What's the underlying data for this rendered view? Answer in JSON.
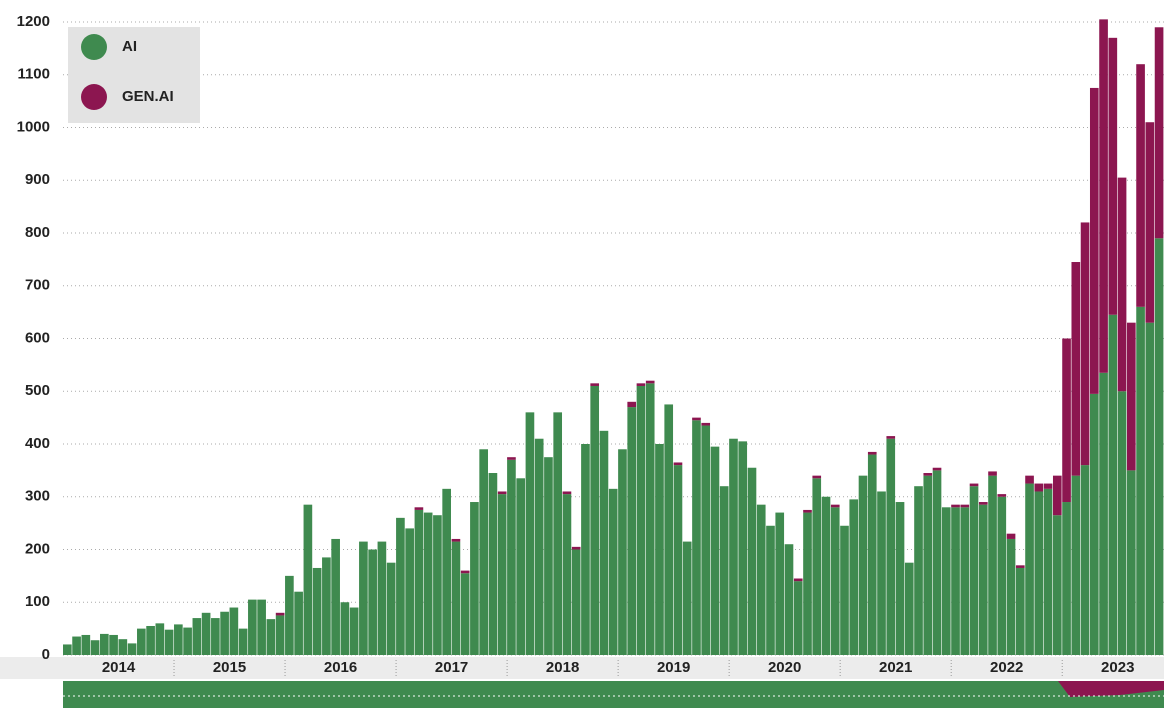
{
  "chart_data": {
    "type": "stacked-bar",
    "categories": [
      null,
      null,
      null,
      null,
      null,
      null,
      "2014",
      null,
      null,
      null,
      null,
      null,
      null,
      null,
      null,
      null,
      null,
      null,
      "2015",
      null,
      null,
      null,
      null,
      null,
      null,
      null,
      null,
      null,
      null,
      null,
      "2016",
      null,
      null,
      null,
      null,
      null,
      null,
      null,
      null,
      null,
      null,
      null,
      "2017",
      null,
      null,
      null,
      null,
      null,
      null,
      null,
      null,
      null,
      null,
      null,
      "2018",
      null,
      null,
      null,
      null,
      null,
      null,
      null,
      null,
      null,
      null,
      null,
      "2019",
      null,
      null,
      null,
      null,
      null,
      null,
      null,
      null,
      null,
      null,
      null,
      "2020",
      null,
      null,
      null,
      null,
      null,
      null,
      null,
      null,
      null,
      null,
      null,
      "2021",
      null,
      null,
      null,
      null,
      null,
      null,
      null,
      null,
      null,
      null,
      null,
      "2022",
      null,
      null,
      null,
      null,
      null,
      null,
      null,
      null,
      null,
      null,
      null,
      "2023",
      null,
      null,
      null,
      null
    ],
    "series": [
      {
        "name": "AI",
        "color": "#3f8a4f",
        "values": [
          20,
          35,
          38,
          28,
          40,
          38,
          30,
          22,
          50,
          55,
          60,
          48,
          58,
          52,
          70,
          80,
          70,
          82,
          90,
          50,
          105,
          105,
          68,
          75,
          150,
          120,
          285,
          165,
          185,
          220,
          100,
          90,
          215,
          200,
          215,
          175,
          260,
          240,
          275,
          270,
          265,
          315,
          215,
          155,
          290,
          390,
          345,
          305,
          370,
          335,
          460,
          410,
          375,
          460,
          305,
          200,
          400,
          510,
          425,
          315,
          390,
          470,
          510,
          515,
          400,
          475,
          360,
          215,
          445,
          435,
          395,
          320,
          410,
          405,
          355,
          285,
          245,
          270,
          210,
          140,
          270,
          335,
          300,
          280,
          245,
          295,
          340,
          380,
          310,
          410,
          290,
          175,
          320,
          340,
          350,
          280,
          280,
          280,
          320,
          285,
          340,
          300,
          220,
          165,
          325,
          310,
          315,
          265,
          290,
          340,
          360,
          495,
          535,
          645,
          500,
          350,
          660,
          630,
          790
        ]
      },
      {
        "name": "GEN.AI",
        "color": "#8c1650",
        "values": [
          0,
          0,
          0,
          0,
          0,
          0,
          0,
          0,
          0,
          0,
          0,
          0,
          0,
          0,
          0,
          0,
          0,
          0,
          0,
          0,
          0,
          0,
          0,
          5,
          0,
          0,
          0,
          0,
          0,
          0,
          0,
          0,
          0,
          0,
          0,
          0,
          0,
          0,
          5,
          0,
          0,
          0,
          5,
          5,
          0,
          0,
          0,
          5,
          5,
          0,
          0,
          0,
          0,
          0,
          5,
          5,
          0,
          5,
          0,
          0,
          0,
          10,
          5,
          5,
          0,
          0,
          5,
          0,
          5,
          5,
          0,
          0,
          0,
          0,
          0,
          0,
          0,
          0,
          0,
          5,
          5,
          5,
          0,
          5,
          0,
          0,
          0,
          5,
          0,
          5,
          0,
          0,
          0,
          5,
          5,
          0,
          5,
          5,
          5,
          5,
          8,
          5,
          10,
          5,
          15,
          15,
          10,
          75,
          310,
          405,
          460,
          580,
          670,
          525,
          405,
          280,
          460,
          380,
          400
        ]
      }
    ],
    "ylim": [
      0,
      1200
    ],
    "yticks": [
      0,
      100,
      200,
      300,
      400,
      500,
      600,
      700,
      800,
      900,
      1000,
      1100,
      1200
    ],
    "grid": true,
    "legend": "upper left"
  }
}
